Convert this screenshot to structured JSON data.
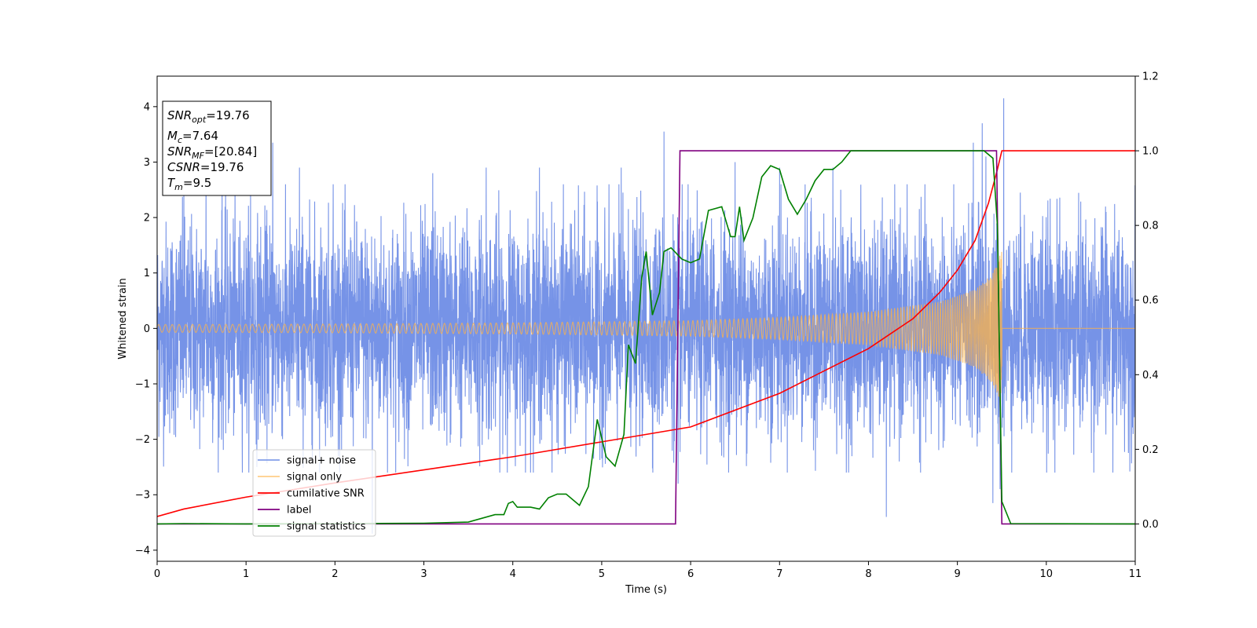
{
  "chart_data": {
    "type": "line",
    "xlabel": "Time (s)",
    "ylabel": "Whitened strain",
    "xlim": [
      0,
      11
    ],
    "ylim": [
      -4.2,
      4.55
    ],
    "y2lim": [
      -0.1,
      1.2
    ],
    "xticks": [
      "0",
      "1",
      "2",
      "3",
      "4",
      "5",
      "6",
      "7",
      "8",
      "9",
      "10",
      "11"
    ],
    "yticks": [
      "−4",
      "−3",
      "−2",
      "−1",
      "0",
      "1",
      "2",
      "3",
      "4"
    ],
    "y2ticks": [
      "0.0",
      "0.2",
      "0.4",
      "0.6",
      "0.8",
      "1.0",
      "1.2"
    ],
    "grid": false,
    "legend_position": "lower-left",
    "info_box": {
      "lines": [
        {
          "label": "SNR",
          "sub": "opt",
          "value": "=19.76"
        },
        {
          "label": "M",
          "sub": "c",
          "value": "=7.64"
        },
        {
          "label": "SNR",
          "sub": "MF",
          "value": "=[20.84]"
        },
        {
          "label": "CSNR",
          "sub": "",
          "value": "=19.76"
        },
        {
          "label": "T",
          "sub": "m",
          "value": "=9.5"
        }
      ]
    },
    "series": [
      {
        "name": "signal+ noise",
        "axis": "left",
        "color": "#6f8de6",
        "kind": "noise",
        "note_values": "dense random noise around 0, typical range ±2.5, spikes up to about 4.2 and down to about -3.7",
        "spikes": [
          [
            0.3,
            2.6
          ],
          [
            0.55,
            2.7
          ],
          [
            0.73,
            3.0
          ],
          [
            1.05,
            2.5
          ],
          [
            1.3,
            3.35
          ],
          [
            1.6,
            2.9
          ],
          [
            1.98,
            2.6
          ],
          [
            2.42,
            3.75
          ],
          [
            2.42,
            -3.7
          ],
          [
            3.1,
            2.8
          ],
          [
            3.7,
            2.9
          ],
          [
            4.3,
            2.9
          ],
          [
            5.22,
            2.9
          ],
          [
            5.7,
            3.55
          ],
          [
            5.86,
            -2.8
          ],
          [
            6.5,
            3.0
          ],
          [
            7.0,
            2.9
          ],
          [
            7.6,
            2.9
          ],
          [
            8.2,
            -3.4
          ],
          [
            9.18,
            3.35
          ],
          [
            9.28,
            3.7
          ],
          [
            9.32,
            3.1
          ],
          [
            9.4,
            -3.15
          ],
          [
            9.52,
            4.15
          ],
          [
            9.48,
            -2.9
          ]
        ]
      },
      {
        "name": "signal only",
        "axis": "left",
        "color": "#ffb347",
        "kind": "chirp",
        "amplitude_points": [
          [
            0,
            0.07
          ],
          [
            2,
            0.08
          ],
          [
            4,
            0.1
          ],
          [
            6,
            0.14
          ],
          [
            7,
            0.2
          ],
          [
            8,
            0.3
          ],
          [
            8.8,
            0.48
          ],
          [
            9.2,
            0.7
          ],
          [
            9.4,
            1.0
          ],
          [
            9.5,
            1.4
          ]
        ],
        "end_time": 9.5
      },
      {
        "name": "cumilative SNR",
        "axis": "right",
        "color": "#ff0000",
        "kind": "line",
        "points": [
          [
            0,
            0.02
          ],
          [
            0.3,
            0.04
          ],
          [
            1,
            0.072
          ],
          [
            2,
            0.11
          ],
          [
            3,
            0.145
          ],
          [
            4,
            0.18
          ],
          [
            5,
            0.22
          ],
          [
            6,
            0.26
          ],
          [
            7,
            0.35
          ],
          [
            7.5,
            0.41
          ],
          [
            8,
            0.47
          ],
          [
            8.5,
            0.55
          ],
          [
            8.8,
            0.62
          ],
          [
            9.0,
            0.68
          ],
          [
            9.2,
            0.76
          ],
          [
            9.35,
            0.86
          ],
          [
            9.45,
            0.95
          ],
          [
            9.5,
            1.0
          ],
          [
            11,
            1.0
          ]
        ]
      },
      {
        "name": "label",
        "axis": "right",
        "color": "#800080",
        "kind": "line",
        "points": [
          [
            0,
            0
          ],
          [
            5.83,
            0
          ],
          [
            5.88,
            1.0
          ],
          [
            9.44,
            1.0
          ],
          [
            9.5,
            0
          ],
          [
            11,
            0
          ]
        ]
      },
      {
        "name": "signal statistics",
        "axis": "right",
        "color": "#008000",
        "kind": "line",
        "points": [
          [
            0,
            0
          ],
          [
            0.3,
            0.001
          ],
          [
            1,
            0
          ],
          [
            2,
            0.001
          ],
          [
            3,
            0.002
          ],
          [
            3.5,
            0.005
          ],
          [
            3.8,
            0.025
          ],
          [
            3.9,
            0.025
          ],
          [
            3.95,
            0.055
          ],
          [
            4.0,
            0.06
          ],
          [
            4.05,
            0.045
          ],
          [
            4.2,
            0.045
          ],
          [
            4.3,
            0.04
          ],
          [
            4.4,
            0.07
          ],
          [
            4.5,
            0.08
          ],
          [
            4.6,
            0.08
          ],
          [
            4.75,
            0.05
          ],
          [
            4.85,
            0.1
          ],
          [
            4.95,
            0.28
          ],
          [
            5.05,
            0.18
          ],
          [
            5.15,
            0.155
          ],
          [
            5.25,
            0.24
          ],
          [
            5.3,
            0.48
          ],
          [
            5.38,
            0.43
          ],
          [
            5.45,
            0.66
          ],
          [
            5.5,
            0.73
          ],
          [
            5.57,
            0.56
          ],
          [
            5.65,
            0.62
          ],
          [
            5.7,
            0.73
          ],
          [
            5.78,
            0.74
          ],
          [
            5.9,
            0.71
          ],
          [
            6.0,
            0.7
          ],
          [
            6.1,
            0.71
          ],
          [
            6.2,
            0.84
          ],
          [
            6.35,
            0.85
          ],
          [
            6.45,
            0.77
          ],
          [
            6.5,
            0.77
          ],
          [
            6.55,
            0.85
          ],
          [
            6.6,
            0.76
          ],
          [
            6.7,
            0.82
          ],
          [
            6.8,
            0.93
          ],
          [
            6.9,
            0.96
          ],
          [
            7.0,
            0.95
          ],
          [
            7.1,
            0.87
          ],
          [
            7.2,
            0.83
          ],
          [
            7.3,
            0.87
          ],
          [
            7.4,
            0.92
          ],
          [
            7.5,
            0.95
          ],
          [
            7.6,
            0.95
          ],
          [
            7.7,
            0.97
          ],
          [
            7.8,
            1.0
          ],
          [
            8.0,
            1.0
          ],
          [
            8.2,
            1.0
          ],
          [
            8.5,
            1.0
          ],
          [
            8.7,
            1.0
          ],
          [
            8.9,
            1.0
          ],
          [
            9.3,
            1.0
          ],
          [
            9.4,
            0.98
          ],
          [
            9.45,
            0.8
          ],
          [
            9.5,
            0.06
          ],
          [
            9.6,
            0.001
          ],
          [
            11,
            0
          ]
        ]
      }
    ]
  }
}
